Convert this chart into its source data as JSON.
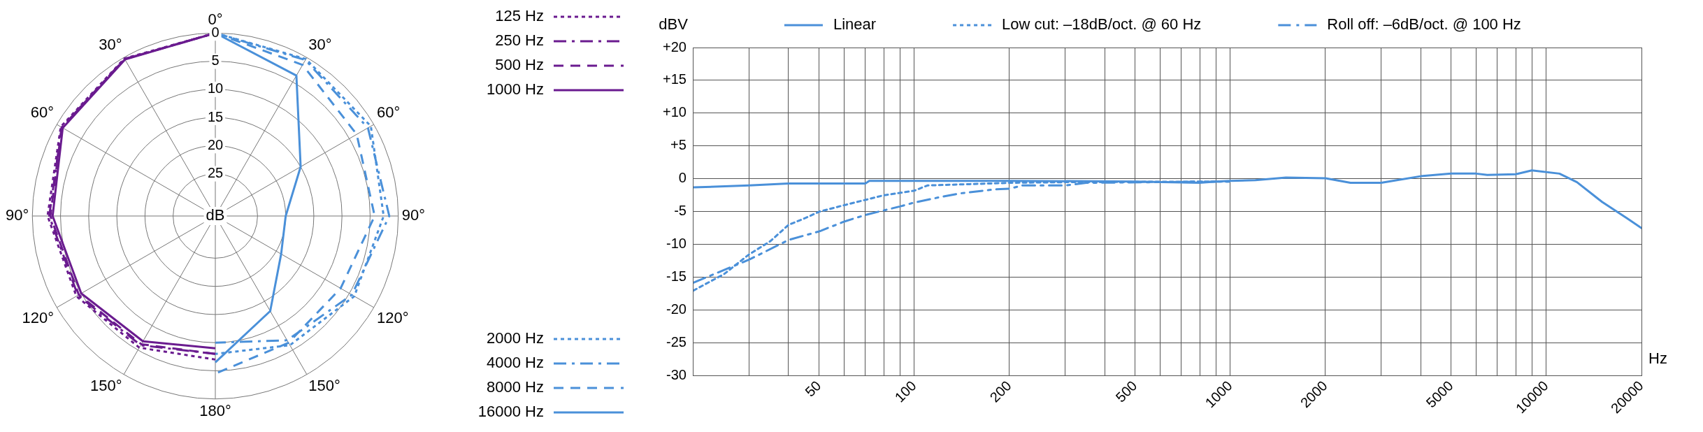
{
  "chart_data": [
    {
      "type": "radar",
      "ylabel": "dB",
      "legend": "right",
      "grid": true,
      "categories": [
        "0°",
        "30°",
        "60°",
        "90°",
        "120°",
        "150°",
        "180°",
        "150°",
        "120°",
        "90°",
        "60°",
        "30°"
      ],
      "ylim": [
        32.5,
        0
      ],
      "yticks": [
        0,
        5,
        10,
        15,
        20,
        25
      ],
      "series": [
        {
          "name": "125 Hz",
          "color": "#6a1b8f",
          "line_style": "dotted",
          "values": [
            0,
            null,
            null,
            null,
            null,
            null,
            7,
            5.5,
            4,
            2.7,
            0.8,
            0.2
          ]
        },
        {
          "name": "250 Hz",
          "color": "#6a1b8f",
          "line_style": "dashdot",
          "values": [
            0,
            null,
            null,
            null,
            null,
            null,
            8,
            6,
            4.3,
            3,
            1,
            0.3
          ]
        },
        {
          "name": "500 Hz",
          "color": "#6a1b8f",
          "line_style": "dashed",
          "values": [
            0,
            null,
            null,
            null,
            null,
            null,
            8,
            6.2,
            4.5,
            3.2,
            1,
            0.3
          ]
        },
        {
          "name": "1000 Hz",
          "color": "#6a1b8f",
          "line_style": "solid",
          "values": [
            0,
            null,
            null,
            null,
            null,
            null,
            9,
            6.8,
            5,
            3.6,
            1.2,
            0.4
          ]
        },
        {
          "name": "2000 Hz",
          "color": "#4a90d9",
          "line_style": "dotted",
          "values": [
            0,
            0.3,
            0.6,
            2.6,
            4,
            6,
            8,
            null,
            null,
            null,
            null,
            null
          ]
        },
        {
          "name": "4000 Hz",
          "color": "#4a90d9",
          "line_style": "dashdot",
          "values": [
            0,
            0.5,
            1.2,
            1.6,
            4.5,
            7,
            10,
            null,
            null,
            null,
            null,
            null
          ]
        },
        {
          "name": "8000 Hz",
          "color": "#4a90d9",
          "line_style": "dashed",
          "values": [
            0,
            1.5,
            3.5,
            4.2,
            6.8,
            6.5,
            4.5,
            null,
            null,
            null,
            null,
            null
          ]
        },
        {
          "name": "16000 Hz",
          "color": "#4a90d9",
          "line_style": "solid",
          "values": [
            0,
            3.7,
            15,
            20,
            19,
            13,
            6.5,
            null,
            null,
            null,
            null,
            null
          ]
        }
      ]
    },
    {
      "type": "line",
      "ylabel": "dBV",
      "xlabel": "Hz",
      "legend": "top",
      "grid": true,
      "log": "x",
      "xlim": [
        20,
        20000
      ],
      "xticks": [
        {
          "value": 30,
          "label": null
        },
        {
          "value": 40,
          "label": null
        },
        50,
        {
          "value": 60,
          "label": null
        },
        {
          "value": 70,
          "label": null
        },
        {
          "value": 80,
          "label": null
        },
        {
          "value": 90,
          "label": null
        },
        100,
        200,
        {
          "value": 300,
          "label": null
        },
        {
          "value": 400,
          "label": null
        },
        500,
        {
          "value": 600,
          "label": null
        },
        {
          "value": 700,
          "label": null
        },
        {
          "value": 800,
          "label": null
        },
        {
          "value": 900,
          "label": null
        },
        1000,
        2000,
        {
          "value": 3000,
          "label": null
        },
        {
          "value": 4000,
          "label": null
        },
        5000,
        {
          "value": 6000,
          "label": null
        },
        {
          "value": 7000,
          "label": null
        },
        {
          "value": 8000,
          "label": null
        },
        {
          "value": 9000,
          "label": null
        },
        10000,
        20000
      ],
      "ylim": [
        -30,
        20
      ],
      "yticks": [
        {
          "value": 20,
          "label": "+20"
        },
        {
          "value": 15,
          "label": "+15"
        },
        {
          "value": 10,
          "label": "+10"
        },
        {
          "value": 5,
          "label": "+5"
        },
        0,
        -5,
        -10,
        -15,
        -20,
        -25,
        -30
      ],
      "series": [
        {
          "name": "Linear",
          "color": "#4a90d9",
          "line_style": "solid",
          "x": [
            20,
            30,
            40,
            70,
            72,
            200,
            500,
            800,
            900,
            1000,
            1200,
            1500,
            2000,
            2400,
            3000,
            4000,
            5000,
            6000,
            6500,
            8000,
            9000,
            11000,
            12500,
            15000,
            18000,
            20000
          ],
          "values": [
            -1.3,
            -1,
            -0.7,
            -0.7,
            -0.3,
            -0.3,
            -0.4,
            -0.6,
            -0.4,
            -0.3,
            -0.2,
            0.2,
            0.1,
            -0.6,
            -0.6,
            0.4,
            0.8,
            0.8,
            0.6,
            0.7,
            1.3,
            0.8,
            -0.5,
            -3.5,
            -6,
            -7.5
          ]
        },
        {
          "name": "Low cut: –18dB/oct. @ 60 Hz",
          "color": "#4a90d9",
          "line_style": "dotted",
          "x": [
            20,
            25,
            30,
            35,
            40,
            45,
            50,
            60,
            70,
            80,
            100,
            110,
            150,
            200,
            300,
            1000
          ],
          "values": [
            -17,
            -14.5,
            -11.5,
            -9.5,
            -7,
            -6,
            -5,
            -4,
            -3.2,
            -2.5,
            -1.8,
            -1,
            -0.8,
            -0.6,
            -0.5,
            -0.4
          ]
        },
        {
          "name": "Roll off: –6dB/oct. @ 100 Hz",
          "color": "#4a90d9",
          "line_style": "dashdot",
          "x": [
            20,
            30,
            40,
            50,
            60,
            70,
            80,
            90,
            100,
            120,
            140,
            180,
            200,
            220,
            300,
            350,
            1000
          ],
          "values": [
            -15.8,
            -12.3,
            -9.3,
            -8,
            -6.5,
            -5.5,
            -4.8,
            -4.2,
            -3.6,
            -2.8,
            -2.2,
            -1.6,
            -1.5,
            -1,
            -1,
            -0.6,
            -0.4
          ]
        }
      ]
    }
  ]
}
